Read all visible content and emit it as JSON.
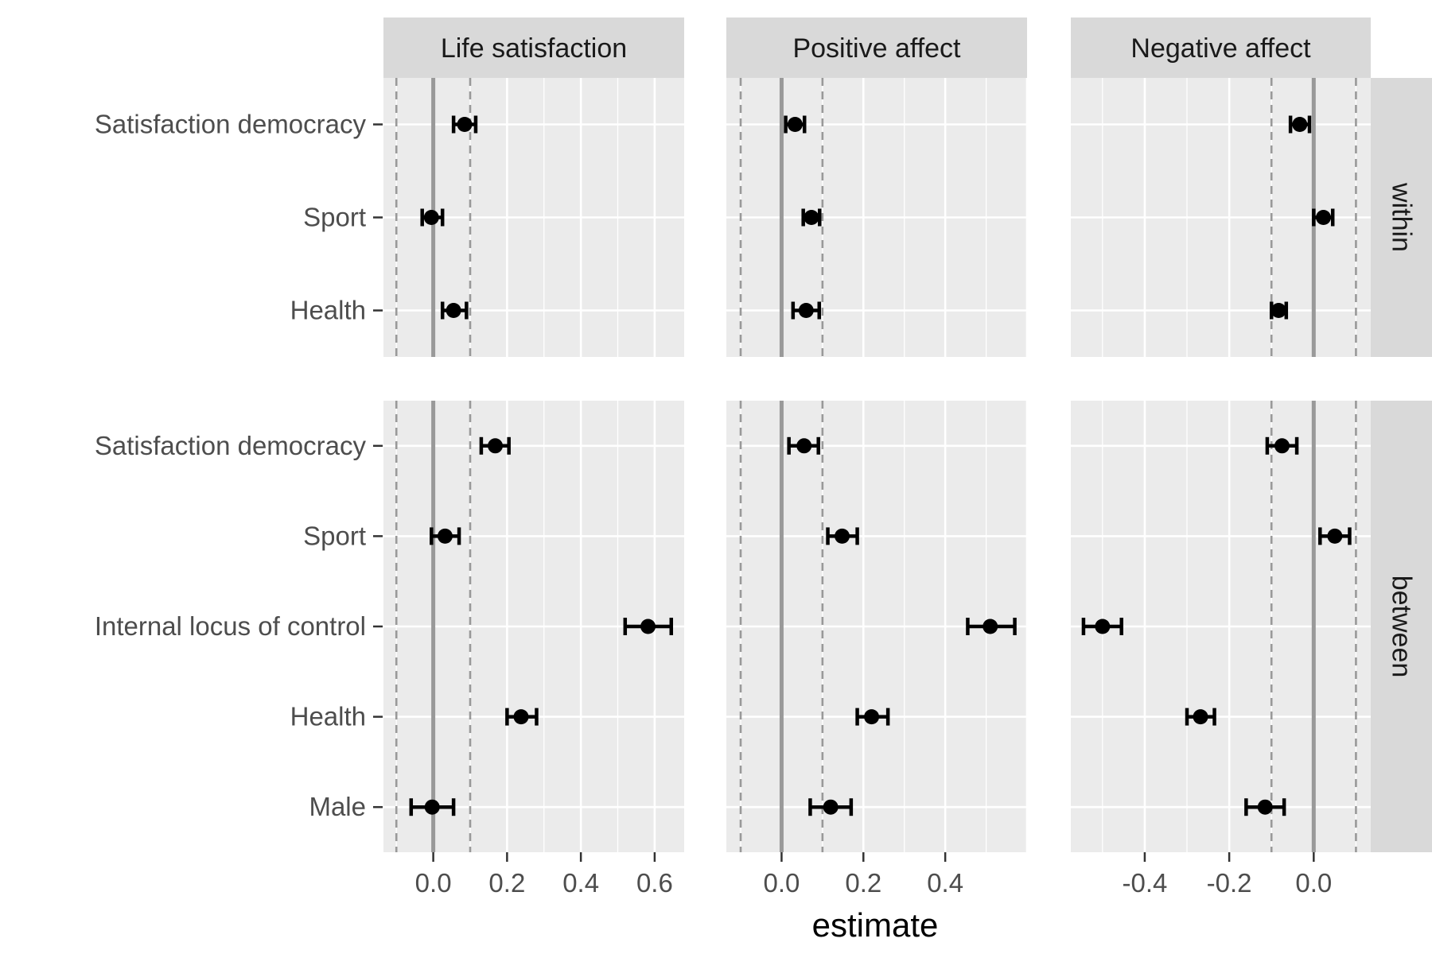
{
  "chart_data": {
    "type": "scatter",
    "subtype": "coefficient-plot-with-error-bars",
    "xlabel": "estimate",
    "ylabel": "",
    "columns": [
      "Life satisfaction",
      "Positive affect",
      "Negative affect"
    ],
    "rows": [
      "within",
      "between"
    ],
    "reference_lines": {
      "solid": 0,
      "dashed": [
        -0.1,
        0.1
      ]
    },
    "grid": true,
    "row_categories": {
      "within": [
        "Satisfaction democracy",
        "Sport",
        "Health"
      ],
      "between": [
        "Satisfaction democracy",
        "Sport",
        "Internal locus of control",
        "Health",
        "Male"
      ]
    },
    "x_ticks": {
      "Life satisfaction": [
        "0.0",
        "0.2",
        "0.4",
        "0.6"
      ],
      "Positive affect": [
        "0.0",
        "0.2",
        "0.4"
      ],
      "Negative affect": [
        "-0.4",
        "-0.2",
        "0.0"
      ]
    },
    "panels": [
      {
        "column": "Life satisfaction",
        "row": "within",
        "xlim": [
          -0.135,
          0.68
        ],
        "points": [
          {
            "term": "Satisfaction democracy",
            "estimate": 0.085,
            "low": 0.055,
            "high": 0.115
          },
          {
            "term": "Sport",
            "estimate": -0.005,
            "low": -0.03,
            "high": 0.025
          },
          {
            "term": "Health",
            "estimate": 0.055,
            "low": 0.025,
            "high": 0.09
          }
        ]
      },
      {
        "column": "Positive affect",
        "row": "within",
        "xlim": [
          -0.135,
          0.6
        ],
        "points": [
          {
            "term": "Satisfaction democracy",
            "estimate": 0.033,
            "low": 0.01,
            "high": 0.056
          },
          {
            "term": "Sport",
            "estimate": 0.073,
            "low": 0.053,
            "high": 0.093
          },
          {
            "term": "Health",
            "estimate": 0.06,
            "low": 0.028,
            "high": 0.092
          }
        ]
      },
      {
        "column": "Negative affect",
        "row": "within",
        "xlim": [
          -0.575,
          0.135
        ],
        "points": [
          {
            "term": "Satisfaction democracy",
            "estimate": -0.033,
            "low": -0.055,
            "high": -0.01
          },
          {
            "term": "Sport",
            "estimate": 0.023,
            "low": 0.0,
            "high": 0.045
          },
          {
            "term": "Health",
            "estimate": -0.083,
            "low": -0.1,
            "high": -0.065
          }
        ]
      },
      {
        "column": "Life satisfaction",
        "row": "between",
        "xlim": [
          -0.135,
          0.68
        ],
        "points": [
          {
            "term": "Satisfaction democracy",
            "estimate": 0.168,
            "low": 0.13,
            "high": 0.205
          },
          {
            "term": "Sport",
            "estimate": 0.032,
            "low": -0.005,
            "high": 0.07
          },
          {
            "term": "Internal locus of control",
            "estimate": 0.582,
            "low": 0.52,
            "high": 0.645
          },
          {
            "term": "Health",
            "estimate": 0.238,
            "low": 0.2,
            "high": 0.28
          },
          {
            "term": "Male",
            "estimate": -0.003,
            "low": -0.06,
            "high": 0.055
          }
        ]
      },
      {
        "column": "Positive affect",
        "row": "between",
        "xlim": [
          -0.135,
          0.6
        ],
        "points": [
          {
            "term": "Satisfaction democracy",
            "estimate": 0.055,
            "low": 0.018,
            "high": 0.09
          },
          {
            "term": "Sport",
            "estimate": 0.148,
            "low": 0.113,
            "high": 0.185
          },
          {
            "term": "Internal locus of control",
            "estimate": 0.51,
            "low": 0.455,
            "high": 0.57
          },
          {
            "term": "Health",
            "estimate": 0.22,
            "low": 0.185,
            "high": 0.26
          },
          {
            "term": "Male",
            "estimate": 0.12,
            "low": 0.07,
            "high": 0.17
          }
        ]
      },
      {
        "column": "Negative affect",
        "row": "between",
        "xlim": [
          -0.575,
          0.135
        ],
        "points": [
          {
            "term": "Satisfaction democracy",
            "estimate": -0.075,
            "low": -0.11,
            "high": -0.04
          },
          {
            "term": "Sport",
            "estimate": 0.05,
            "low": 0.015,
            "high": 0.085
          },
          {
            "term": "Internal locus of control",
            "estimate": -0.5,
            "low": -0.545,
            "high": -0.455
          },
          {
            "term": "Health",
            "estimate": -0.268,
            "low": -0.3,
            "high": -0.235
          },
          {
            "term": "Male",
            "estimate": -0.115,
            "low": -0.16,
            "high": -0.07
          }
        ]
      }
    ]
  }
}
